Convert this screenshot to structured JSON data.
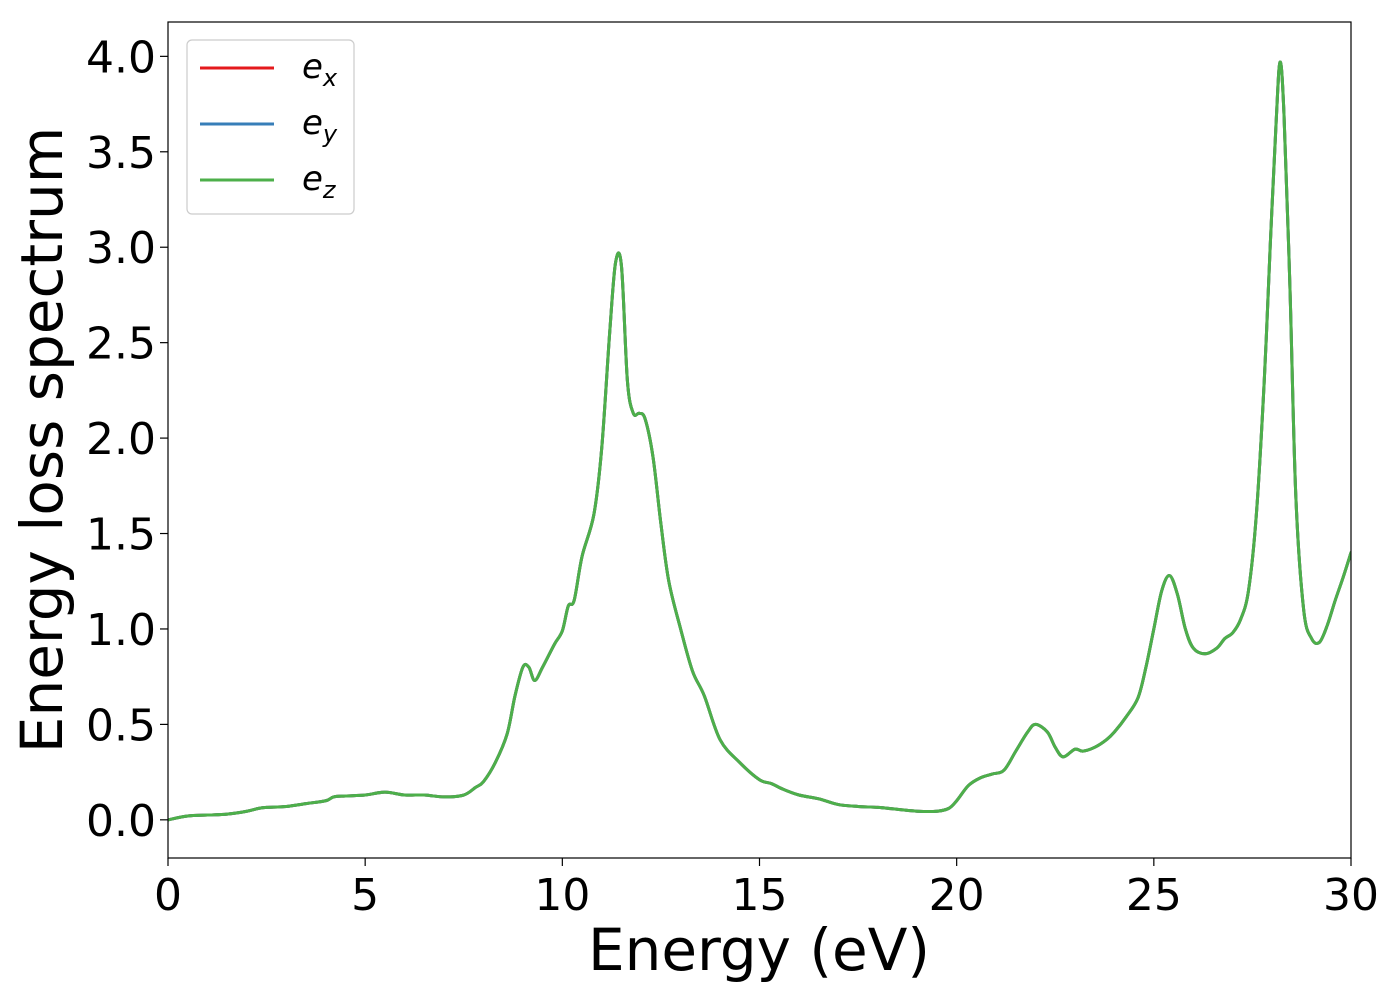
{
  "chart_data": {
    "type": "line",
    "title": "",
    "xlabel": "Energy (eV)",
    "ylabel": "Energy loss spectrum",
    "xlim": [
      0,
      30
    ],
    "ylim": [
      -0.2,
      4.18
    ],
    "xticks": [
      0,
      5,
      10,
      15,
      20,
      25,
      30
    ],
    "xtick_labels": [
      "0",
      "5",
      "10",
      "15",
      "20",
      "25",
      "30"
    ],
    "yticks": [
      0.0,
      0.5,
      1.0,
      1.5,
      2.0,
      2.5,
      3.0,
      3.5,
      4.0
    ],
    "ytick_labels": [
      "0.0",
      "0.5",
      "1.0",
      "1.5",
      "2.0",
      "2.5",
      "3.0",
      "3.5",
      "4.0"
    ],
    "grid": false,
    "legend_position": "top-left",
    "x": [
      0,
      0.5,
      1.0,
      1.5,
      2.0,
      2.3,
      2.5,
      3.0,
      3.5,
      4.0,
      4.2,
      4.5,
      5.0,
      5.5,
      6.0,
      6.5,
      7.0,
      7.5,
      7.8,
      8.0,
      8.3,
      8.6,
      8.8,
      9.0,
      9.15,
      9.3,
      9.5,
      9.8,
      10.0,
      10.15,
      10.3,
      10.5,
      10.8,
      11.0,
      11.2,
      11.35,
      11.5,
      11.65,
      11.8,
      11.95,
      12.1,
      12.3,
      12.5,
      12.7,
      13.0,
      13.3,
      13.6,
      14.0,
      14.5,
      15.0,
      15.3,
      15.6,
      16.0,
      16.5,
      17.0,
      17.5,
      18.0,
      18.5,
      19.0,
      19.5,
      19.8,
      20.0,
      20.3,
      20.6,
      20.9,
      21.2,
      21.5,
      21.8,
      22.0,
      22.3,
      22.5,
      22.7,
      23.0,
      23.2,
      23.5,
      23.8,
      24.0,
      24.3,
      24.6,
      24.8,
      25.0,
      25.2,
      25.4,
      25.6,
      25.8,
      26.0,
      26.3,
      26.6,
      26.8,
      27.0,
      27.2,
      27.4,
      27.6,
      27.8,
      27.95,
      28.1,
      28.2,
      28.3,
      28.45,
      28.6,
      28.8,
      29.0,
      29.2,
      29.4,
      29.6,
      29.8,
      30.0
    ],
    "series": [
      {
        "name": "ex",
        "label_base": "e",
        "label_sub": "x",
        "color": "#e41a1c",
        "values": [
          0.0,
          0.02,
          0.025,
          0.03,
          0.045,
          0.06,
          0.065,
          0.07,
          0.085,
          0.1,
          0.12,
          0.125,
          0.13,
          0.145,
          0.13,
          0.13,
          0.12,
          0.13,
          0.17,
          0.2,
          0.3,
          0.45,
          0.65,
          0.8,
          0.8,
          0.73,
          0.8,
          0.92,
          0.99,
          1.12,
          1.15,
          1.38,
          1.6,
          1.95,
          2.55,
          2.92,
          2.9,
          2.3,
          2.13,
          2.13,
          2.1,
          1.9,
          1.55,
          1.25,
          1.0,
          0.78,
          0.65,
          0.42,
          0.3,
          0.21,
          0.19,
          0.16,
          0.13,
          0.11,
          0.08,
          0.07,
          0.065,
          0.055,
          0.045,
          0.045,
          0.06,
          0.1,
          0.18,
          0.22,
          0.24,
          0.26,
          0.36,
          0.46,
          0.5,
          0.46,
          0.38,
          0.33,
          0.37,
          0.36,
          0.38,
          0.42,
          0.46,
          0.54,
          0.64,
          0.8,
          1.0,
          1.2,
          1.28,
          1.18,
          1.0,
          0.9,
          0.87,
          0.9,
          0.95,
          0.98,
          1.05,
          1.2,
          1.6,
          2.3,
          3.0,
          3.65,
          3.97,
          3.7,
          2.8,
          1.7,
          1.1,
          0.95,
          0.93,
          1.02,
          1.15,
          1.27,
          1.4
        ]
      },
      {
        "name": "ey",
        "label_base": "e",
        "label_sub": "y",
        "color": "#377eb8",
        "values": [
          0.0,
          0.02,
          0.025,
          0.03,
          0.045,
          0.06,
          0.065,
          0.07,
          0.085,
          0.1,
          0.12,
          0.125,
          0.13,
          0.145,
          0.13,
          0.13,
          0.12,
          0.13,
          0.17,
          0.2,
          0.3,
          0.45,
          0.65,
          0.8,
          0.8,
          0.73,
          0.8,
          0.92,
          0.99,
          1.12,
          1.15,
          1.38,
          1.6,
          1.95,
          2.55,
          2.92,
          2.9,
          2.3,
          2.13,
          2.13,
          2.1,
          1.9,
          1.55,
          1.25,
          1.0,
          0.78,
          0.65,
          0.42,
          0.3,
          0.21,
          0.19,
          0.16,
          0.13,
          0.11,
          0.08,
          0.07,
          0.065,
          0.055,
          0.045,
          0.045,
          0.06,
          0.1,
          0.18,
          0.22,
          0.24,
          0.26,
          0.36,
          0.46,
          0.5,
          0.46,
          0.38,
          0.33,
          0.37,
          0.36,
          0.38,
          0.42,
          0.46,
          0.54,
          0.64,
          0.8,
          1.0,
          1.2,
          1.28,
          1.18,
          1.0,
          0.9,
          0.87,
          0.9,
          0.95,
          0.98,
          1.05,
          1.2,
          1.6,
          2.3,
          3.0,
          3.65,
          3.97,
          3.7,
          2.8,
          1.7,
          1.1,
          0.95,
          0.93,
          1.02,
          1.15,
          1.27,
          1.4
        ]
      },
      {
        "name": "ez",
        "label_base": "e",
        "label_sub": "z",
        "color": "#4daf4a",
        "values": [
          0.0,
          0.02,
          0.025,
          0.03,
          0.045,
          0.06,
          0.065,
          0.07,
          0.085,
          0.1,
          0.12,
          0.125,
          0.13,
          0.145,
          0.13,
          0.13,
          0.12,
          0.13,
          0.17,
          0.2,
          0.3,
          0.45,
          0.65,
          0.8,
          0.8,
          0.73,
          0.8,
          0.92,
          0.99,
          1.12,
          1.15,
          1.38,
          1.6,
          1.95,
          2.55,
          2.92,
          2.9,
          2.3,
          2.13,
          2.13,
          2.1,
          1.9,
          1.55,
          1.25,
          1.0,
          0.78,
          0.65,
          0.42,
          0.3,
          0.21,
          0.19,
          0.16,
          0.13,
          0.11,
          0.08,
          0.07,
          0.065,
          0.055,
          0.045,
          0.045,
          0.06,
          0.1,
          0.18,
          0.22,
          0.24,
          0.26,
          0.36,
          0.46,
          0.5,
          0.46,
          0.38,
          0.33,
          0.37,
          0.36,
          0.38,
          0.42,
          0.46,
          0.54,
          0.64,
          0.8,
          1.0,
          1.2,
          1.28,
          1.18,
          1.0,
          0.9,
          0.87,
          0.9,
          0.95,
          0.98,
          1.05,
          1.2,
          1.6,
          2.3,
          3.0,
          3.65,
          3.97,
          3.7,
          2.8,
          1.7,
          1.1,
          0.95,
          0.93,
          1.02,
          1.15,
          1.27,
          1.4
        ]
      }
    ]
  }
}
